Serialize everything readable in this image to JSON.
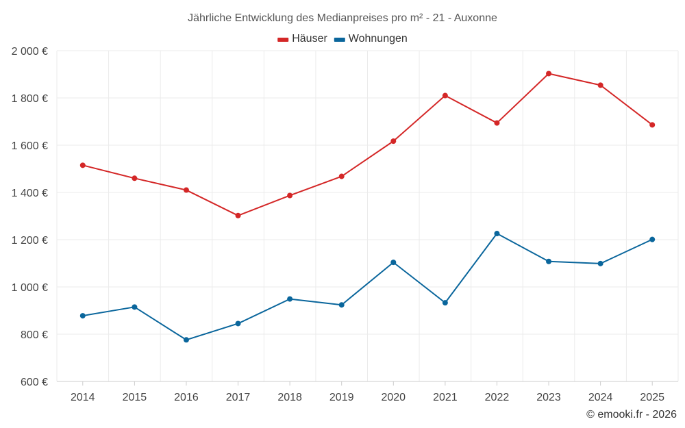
{
  "chart_data": {
    "type": "line",
    "title": "Jährliche Entwicklung des Medianpreises pro m² - 21 - Auxonne",
    "categories": [
      "2014",
      "2015",
      "2016",
      "2017",
      "2018",
      "2019",
      "2020",
      "2021",
      "2022",
      "2023",
      "2024",
      "2025"
    ],
    "series": [
      {
        "name": "Häuser",
        "color": "#d42727",
        "values": [
          1515,
          1460,
          1410,
          1302,
          1387,
          1468,
          1617,
          1810,
          1694,
          1903,
          1854,
          1686
        ]
      },
      {
        "name": "Wohnungen",
        "color": "#0a669c",
        "values": [
          878,
          915,
          776,
          845,
          949,
          924,
          1104,
          933,
          1226,
          1108,
          1099,
          1201
        ]
      }
    ],
    "ylim": [
      600,
      2000
    ],
    "yticks": [
      600,
      800,
      1000,
      1200,
      1400,
      1600,
      1800,
      2000
    ],
    "ytick_labels": [
      "600 €",
      "800 €",
      "1 000 €",
      "1 200 €",
      "1 400 €",
      "1 600 €",
      "1 800 €",
      "2 000 €"
    ],
    "xlabel": "",
    "ylabel": "",
    "legend_position": "top-center",
    "grid": true
  },
  "credit": "© emooki.fr - 2026"
}
